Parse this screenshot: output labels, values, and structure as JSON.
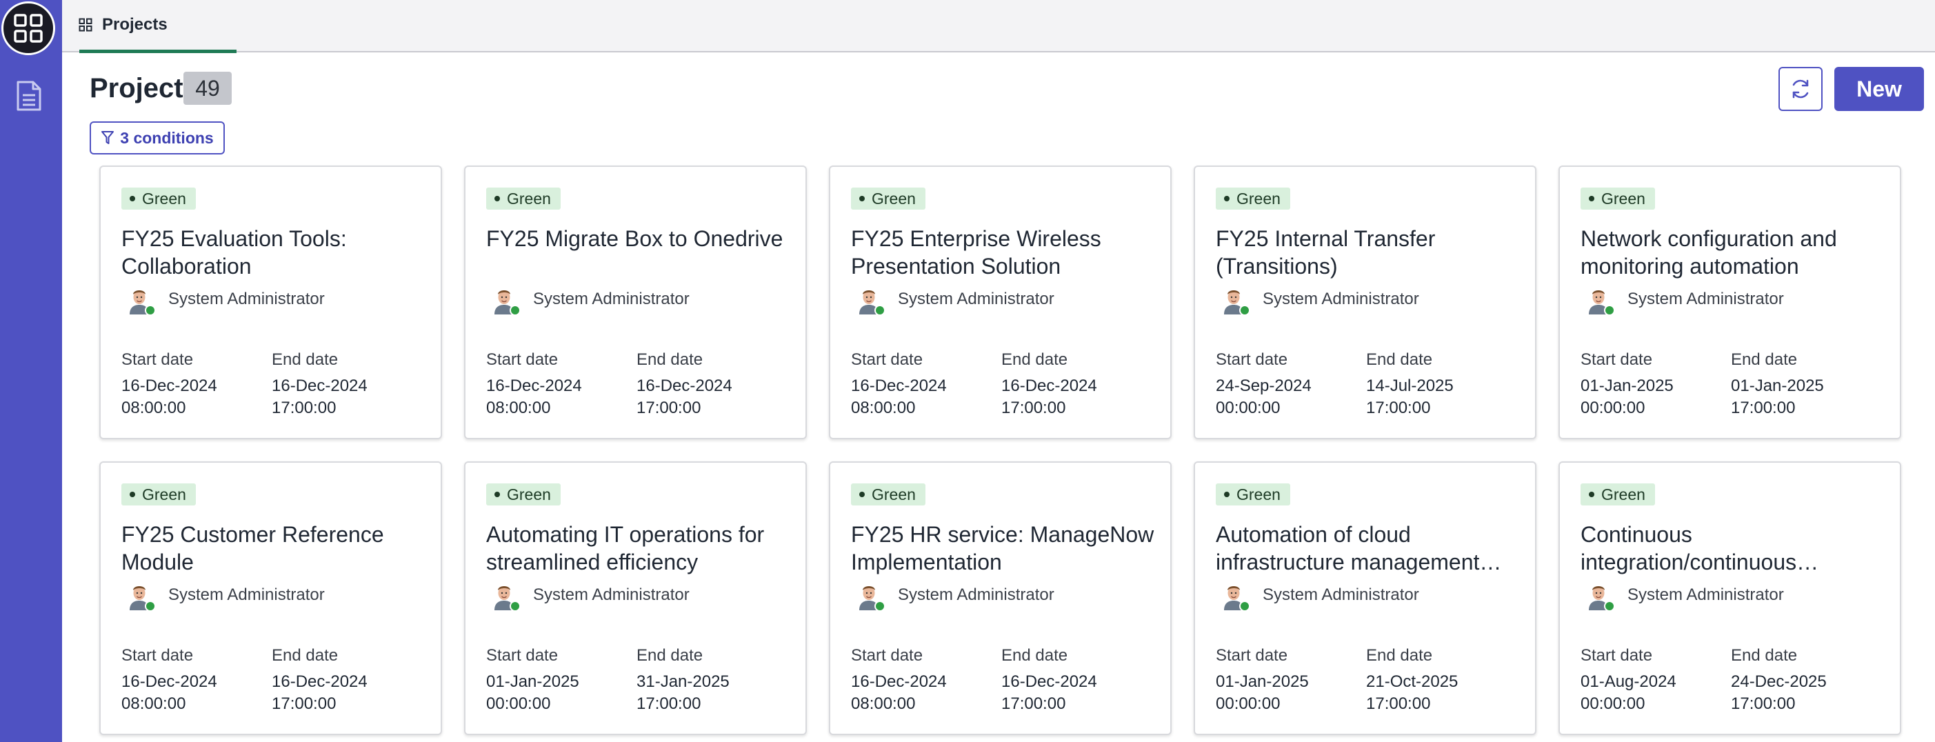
{
  "tab": {
    "label": "Projects",
    "icon": "grid-icon"
  },
  "header": {
    "title": "Project",
    "count": "49",
    "filter_label": "3 conditions",
    "new_label": "New"
  },
  "labels": {
    "start": "Start date",
    "end": "End date"
  },
  "colors": {
    "accent": "#4f52c2",
    "status_bg": "#d9f0dd",
    "tab_underline": "#1f7a55"
  },
  "cards": [
    {
      "status": "Green",
      "title": "FY25 Evaluation Tools: Collaboration",
      "owner": "System Administrator",
      "start_date": "16-Dec-2024",
      "start_time": "08:00:00",
      "end_date": "16-Dec-2024",
      "end_time": "17:00:00"
    },
    {
      "status": "Green",
      "title": "FY25 Migrate Box to Onedrive",
      "owner": "System Administrator",
      "start_date": "16-Dec-2024",
      "start_time": "08:00:00",
      "end_date": "16-Dec-2024",
      "end_time": "17:00:00"
    },
    {
      "status": "Green",
      "title": "FY25 Enterprise Wireless Presentation Solution",
      "owner": "System Administrator",
      "start_date": "16-Dec-2024",
      "start_time": "08:00:00",
      "end_date": "16-Dec-2024",
      "end_time": "17:00:00"
    },
    {
      "status": "Green",
      "title": "FY25 Internal Transfer (Transitions)",
      "owner": "System Administrator",
      "start_date": "24-Sep-2024",
      "start_time": "00:00:00",
      "end_date": "14-Jul-2025",
      "end_time": "17:00:00"
    },
    {
      "status": "Green",
      "title": "Network configuration and monitoring automation",
      "owner": "System Administrator",
      "start_date": "01-Jan-2025",
      "start_time": "00:00:00",
      "end_date": "01-Jan-2025",
      "end_time": "17:00:00"
    },
    {
      "status": "Green",
      "title": "FY25 Customer Reference Module",
      "owner": "System Administrator",
      "start_date": "16-Dec-2024",
      "start_time": "08:00:00",
      "end_date": "16-Dec-2024",
      "end_time": "17:00:00"
    },
    {
      "status": "Green",
      "title": "Automating IT operations for streamlined efficiency",
      "owner": "System Administrator",
      "start_date": "01-Jan-2025",
      "start_time": "00:00:00",
      "end_date": "31-Jan-2025",
      "end_time": "17:00:00"
    },
    {
      "status": "Green",
      "title": "FY25 HR service: ManageNow Implementation",
      "owner": "System Administrator",
      "start_date": "16-Dec-2024",
      "start_time": "08:00:00",
      "end_date": "16-Dec-2024",
      "end_time": "17:00:00"
    },
    {
      "status": "Green",
      "title": "Automation of cloud infrastructure management…",
      "owner": "System Administrator",
      "start_date": "01-Jan-2025",
      "start_time": "00:00:00",
      "end_date": "21-Oct-2025",
      "end_time": "17:00:00"
    },
    {
      "status": "Green",
      "title": "Continuous integration/continuous…",
      "owner": "System Administrator",
      "start_date": "01-Aug-2024",
      "start_time": "00:00:00",
      "end_date": "24-Dec-2025",
      "end_time": "17:00:00"
    }
  ]
}
